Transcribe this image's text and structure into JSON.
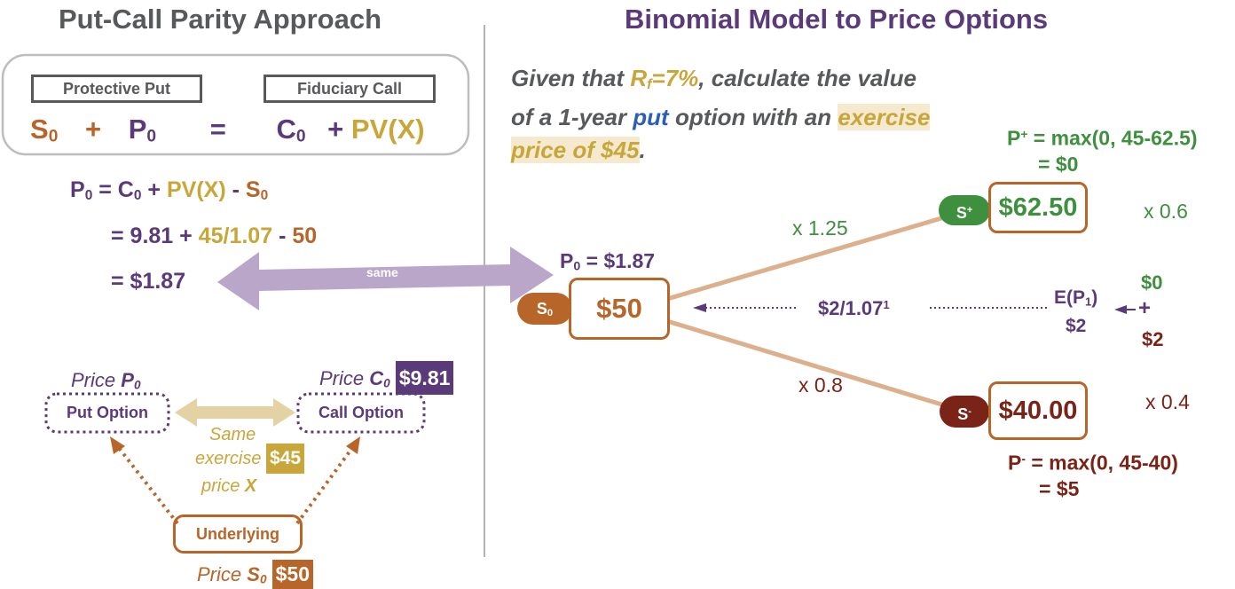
{
  "left": {
    "title": "Put-Call Parity Approach",
    "protective_put_label": "Protective Put",
    "fiduciary_call_label": "Fiduciary Call",
    "eq_s0": "S",
    "eq_s0_sub": "0",
    "eq_plus1": "+",
    "eq_p0": "P",
    "eq_p0_sub": "0",
    "eq_equals": "=",
    "eq_c0": "C",
    "eq_c0_sub": "0",
    "eq_plus2": "+",
    "eq_pvx": "PV(X)",
    "calc1_p": "P",
    "calc1_p_sub": "0",
    "calc1_eq": " = C",
    "calc1_c_sub": "0",
    "calc1_plus": " + ",
    "calc1_pvx": "PV(X)",
    "calc1_minus": " - ",
    "calc1_s": "S",
    "calc1_s_sub": "0",
    "calc2_a": "= 9.81 + ",
    "calc2_b": "45/1.07",
    "calc2_c": " - ",
    "calc2_d": "50",
    "calc3": "= $1.87",
    "same_arrow_label": "same",
    "price_p0_text": "Price ",
    "price_p0_sym": "P",
    "price_p0_sub": "0",
    "price_c0_text": "Price ",
    "price_c0_sym": "C",
    "price_c0_sub": "0",
    "price_c0_tag": "$9.81",
    "put_option_label": "Put Option",
    "call_option_label": "Call Option",
    "same_text": "Same",
    "exercise_text": "exercise",
    "exercise_tag": "$45",
    "price_x_text": "price ",
    "price_x_sym": "X",
    "underlying_label": "Underlying",
    "price_s0_text": "Price ",
    "price_s0_sym": "S",
    "price_s0_sub": "0",
    "price_s0_tag": "$50"
  },
  "right": {
    "title": "Binomial Model to Price Options",
    "q_line1_a": "Given that ",
    "q_rf": "R",
    "q_rf_sub": "f",
    "q_rf_val": "=7%",
    "q_line1_b": ", calculate the value",
    "q_line2_a": "of a 1-year ",
    "q_put": "put",
    "q_line2_b": " option with an ",
    "q_exercise": "exercise",
    "q_line3": "price of $45",
    "q_line3_end": ".",
    "p_up_line1": "P",
    "p_up_sup": "+",
    "p_up_rest": " = max(0, 45-62.5)",
    "p_up_line2": "= $0",
    "up_factor": "x 1.25",
    "up_pill": "S",
    "up_pill_sup": "+",
    "up_value": "$62.50",
    "up_prob": "x 0.6",
    "p0_label_a": "P",
    "p0_label_sub": "0",
    "p0_label_b": " = $1.87",
    "s0_pill": "S",
    "s0_pill_sub": "0",
    "s0_value": "$50",
    "discount_a": "$2/1.07",
    "discount_sup": "1",
    "expect_a": "E(P",
    "expect_sub": "1",
    "expect_b": ")",
    "expect_val": "$2",
    "sum_top": "$0",
    "sum_plus": "+",
    "sum_bottom": "$2",
    "down_factor": "x 0.8",
    "down_pill": "S",
    "down_pill_sup": "-",
    "down_value": "$40.00",
    "down_prob": "x 0.4",
    "p_down_line1": "P",
    "p_down_sup": "-",
    "p_down_rest": " = max(0, 45-40)",
    "p_down_line2": "= $5"
  },
  "colors": {
    "purple": "#5b3a7a",
    "orange": "#b8652a",
    "gold": "#c9a63a",
    "green": "#3e8f3e",
    "maroon": "#7a2418",
    "gray": "#58595b",
    "blue": "#2b5fb5",
    "lavender_arrow": "#b9a6c9",
    "tan_arrow": "#e3d3a4",
    "tree_branch": "#dcb08c",
    "highlight": "#f5ead0"
  }
}
